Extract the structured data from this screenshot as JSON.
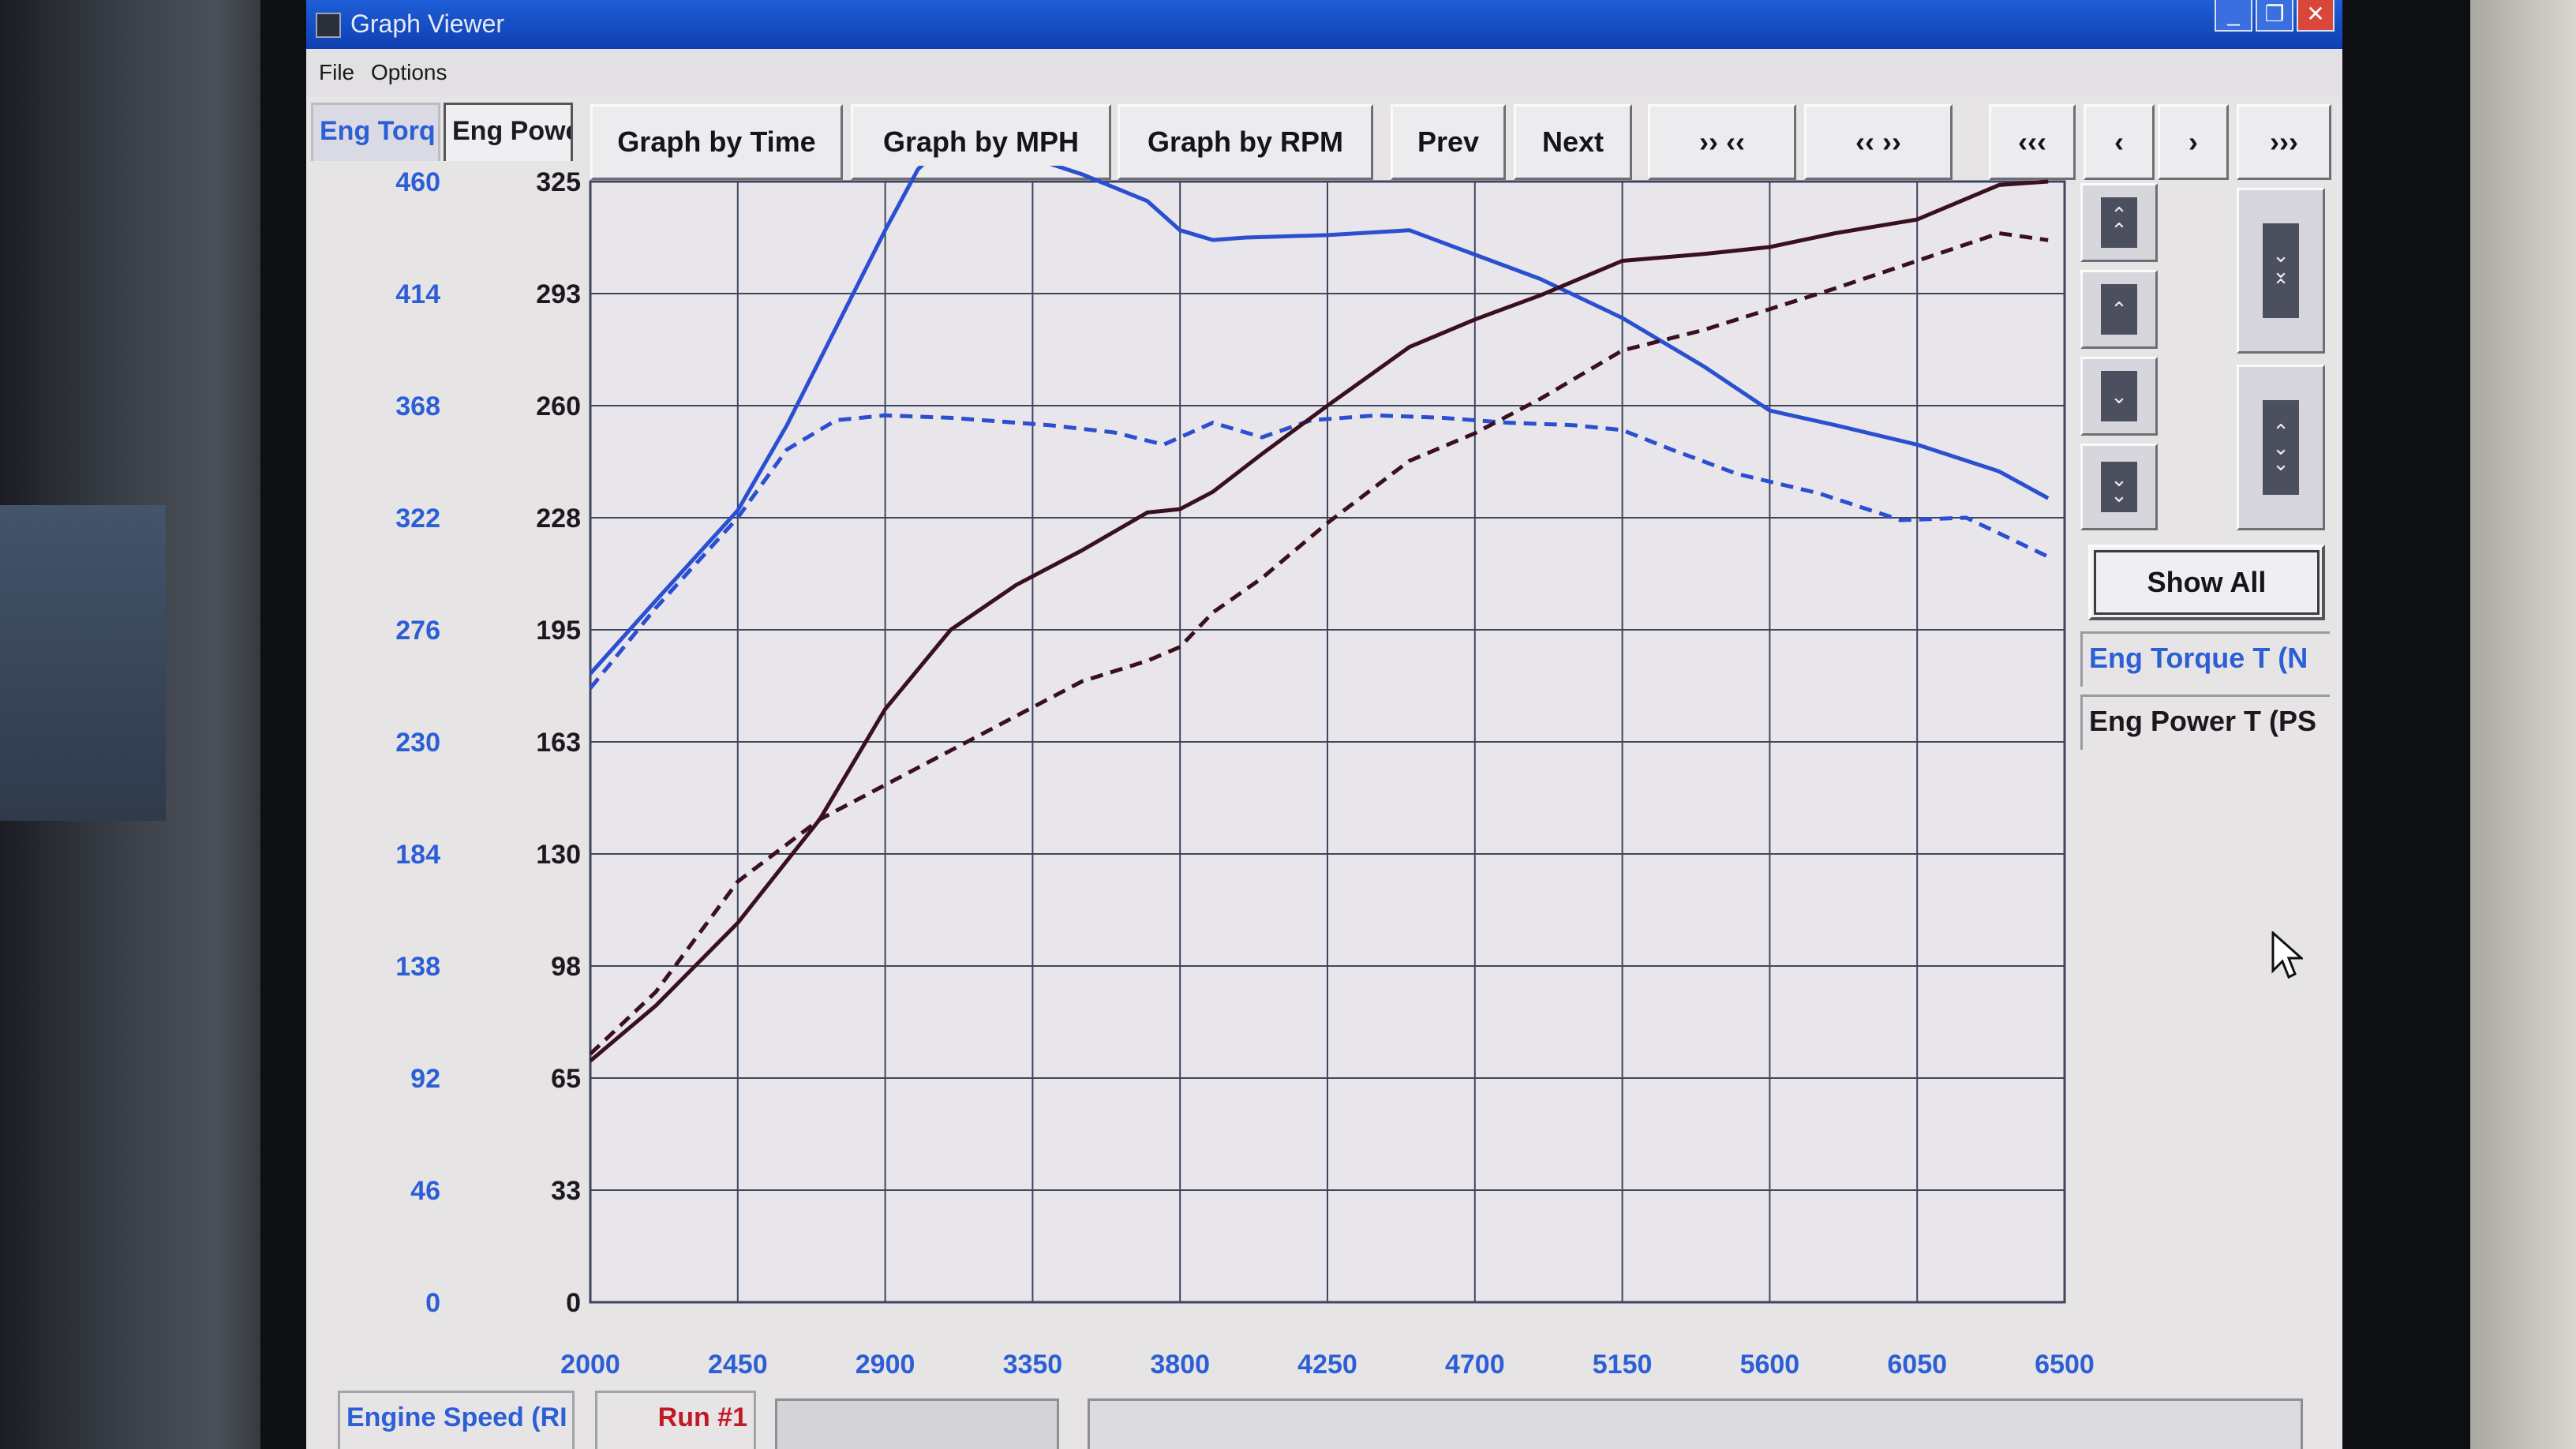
{
  "window": {
    "title": "Graph Viewer"
  },
  "menu": [
    "File",
    "Options"
  ],
  "tabs": {
    "torque": "Eng Torq",
    "power": "Eng Powe"
  },
  "toolbar": {
    "graph_by_time": "Graph by Time",
    "graph_by_mph": "Graph by MPH",
    "graph_by_rpm": "Graph by RPM",
    "prev": "Prev",
    "next": "Next",
    "zoom_in": "›› ‹‹",
    "zoom_out": "‹‹ ››",
    "first": "‹‹‹",
    "back": "‹",
    "forward": "›",
    "last": "›››"
  },
  "side": {
    "show_all": "Show All",
    "legend": [
      "Eng Torque T (N",
      "Eng Power T (PS"
    ]
  },
  "bottom": {
    "axis_tab": "Engine Speed (RI",
    "run_tab": "Run #1"
  },
  "colors": {
    "torque": "#2a4fd0",
    "power": "#3a1020",
    "grid": "#3d4560",
    "plot_bg": "#e8e6ea"
  },
  "chart_data": {
    "type": "line",
    "x_ticks": [
      "2000",
      "2450",
      "2900",
      "3350",
      "3800",
      "4250",
      "4700",
      "5150",
      "5600",
      "6050",
      "6500"
    ],
    "y_left_ticks": [
      "460",
      "414",
      "368",
      "322",
      "276",
      "230",
      "184",
      "138",
      "92",
      "46",
      "0"
    ],
    "y_right_ticks": [
      "325",
      "293",
      "260",
      "228",
      "195",
      "163",
      "130",
      "98",
      "65",
      "33",
      "0"
    ],
    "xlim": [
      2000,
      6500
    ],
    "ylim_torque": [
      0,
      460
    ],
    "ylim_power": [
      0,
      325
    ],
    "grid": true,
    "series": [
      {
        "axis": "left",
        "style": "solid",
        "color": "#2a4fd0",
        "x": [
          2000,
          2200,
          2450,
          2600,
          2750,
          2900,
          3000,
          3100,
          3250,
          3500,
          3700,
          3800,
          3900,
          4000,
          4250,
          4500,
          4700,
          4900,
          5150,
          5400,
          5600,
          5800,
          6050,
          6300,
          6450
        ],
        "y": [
          258,
          288,
          325,
          360,
          400,
          440,
          465,
          478,
          474,
          463,
          452,
          440,
          436,
          437,
          438,
          440,
          430,
          420,
          404,
          384,
          366,
          360,
          352,
          341,
          330
        ]
      },
      {
        "axis": "left",
        "style": "dashed",
        "color": "#2a4fd0",
        "x": [
          2000,
          2200,
          2450,
          2600,
          2750,
          2900,
          3100,
          3400,
          3600,
          3750,
          3900,
          4050,
          4200,
          4400,
          4600,
          4800,
          5000,
          5150,
          5300,
          5500,
          5750,
          6000,
          6200,
          6450
        ],
        "y": [
          252,
          285,
          322,
          350,
          362,
          364,
          363,
          360,
          357,
          352,
          361,
          355,
          362,
          364,
          363,
          361,
          360,
          358,
          350,
          340,
          332,
          321,
          322,
          306
        ]
      },
      {
        "axis": "right",
        "style": "solid",
        "color": "#3a1020",
        "x": [
          2000,
          2200,
          2450,
          2700,
          2900,
          3100,
          3300,
          3500,
          3700,
          3800,
          3900,
          4050,
          4250,
          4500,
          4700,
          4900,
          5150,
          5400,
          5600,
          5800,
          6050,
          6300,
          6450
        ],
        "y": [
          70,
          86,
          110,
          140,
          172,
          195,
          208,
          218,
          229,
          230,
          235,
          246,
          260,
          277,
          285,
          292,
          302,
          304,
          306,
          310,
          314,
          324,
          325
        ]
      },
      {
        "axis": "right",
        "style": "dashed",
        "color": "#3a1020",
        "x": [
          2000,
          2200,
          2450,
          2700,
          2900,
          3100,
          3300,
          3500,
          3700,
          3800,
          3900,
          4050,
          4250,
          4500,
          4700,
          4900,
          5150,
          5400,
          5600,
          5800,
          6050,
          6300,
          6450
        ],
        "y": [
          72,
          90,
          122,
          140,
          150,
          160,
          170,
          180,
          186,
          190,
          200,
          210,
          226,
          244,
          252,
          262,
          276,
          282,
          288,
          294,
          302,
          310,
          308
        ]
      }
    ]
  }
}
